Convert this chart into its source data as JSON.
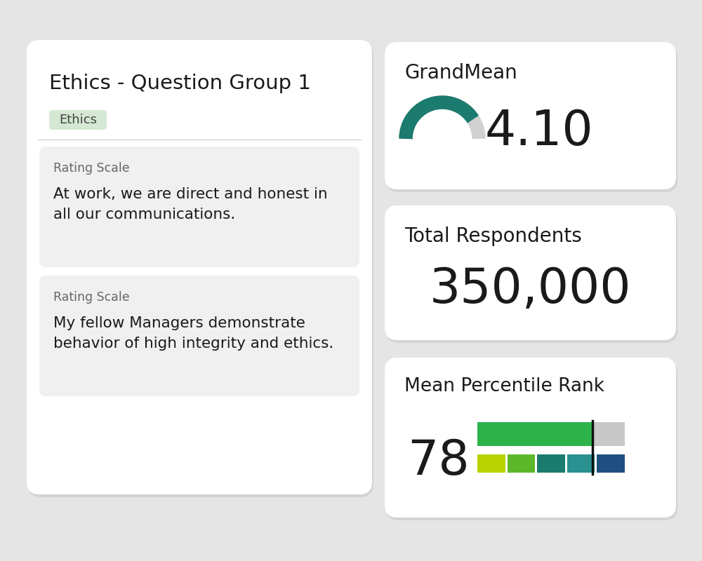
{
  "background_color": "#e5e5e5",
  "title": "Ethics - Question Group 1",
  "tag_label": "Ethics",
  "tag_bg": "#d4e8d4",
  "tag_text_color": "#444444",
  "rating_scale_label": "Rating Scale",
  "question1": "At work, we are direct and honest in\nall our communications.",
  "question2": "My fellow Managers demonstrate\nbehavior of high integrity and ethics.",
  "grand_mean_label": "GrandMean",
  "grand_mean_value": "4.10",
  "grand_mean_numeric": 4.1,
  "gauge_color_filled": "#1b7b6e",
  "gauge_color_empty": "#d0d0d0",
  "total_respondents_label": "Total Respondents",
  "total_respondents_value": "350,000",
  "mean_percentile_label": "Mean Percentile Rank",
  "mean_percentile_value": "78",
  "mean_percentile_numeric": 78,
  "bar_colors_top": [
    "#2db34a",
    "#c8c8c8"
  ],
  "bar_colors_bottom": [
    "#b8d400",
    "#5cb82a",
    "#1b7b6e",
    "#2a9090",
    "#1e4f80"
  ],
  "card_bg": "#ffffff",
  "text_color": "#1a1a1a",
  "subtext_color": "#666666"
}
